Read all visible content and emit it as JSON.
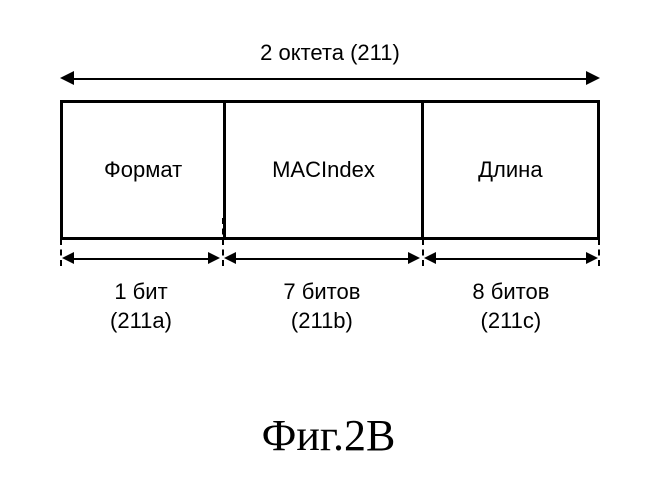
{
  "diagram": {
    "type": "infographic",
    "background_color": "#ffffff",
    "border_color": "#000000",
    "border_width": 3,
    "font_family": "Arial, sans-serif",
    "label_fontsize": 22,
    "caption_fontsize": 44,
    "total_label": "2 октета (211)",
    "fields": [
      {
        "name": "Формат",
        "bits_label": "1 бит",
        "ref": "(211a)",
        "width_pct": 30
      },
      {
        "name": "MACIndex",
        "bits_label": "7 битов",
        "ref": "(211b)",
        "width_pct": 37
      },
      {
        "name": "Длина",
        "bits_label": "8 битов",
        "ref": "(211c)",
        "width_pct": 33
      }
    ],
    "caption": "Фиг.2B"
  }
}
